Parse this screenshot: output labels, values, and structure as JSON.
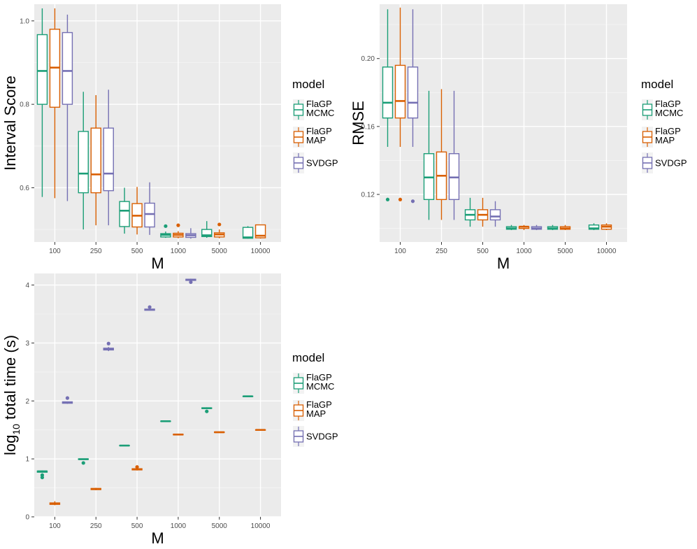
{
  "colors": {
    "panel": "#ebebeb",
    "grid_major": "#ffffff",
    "FlaGP MCMC": "#1b9e77",
    "FlaGP MAP": "#d95f02",
    "SVDGP": "#7570b3"
  },
  "legend": {
    "title": "model",
    "entries": [
      {
        "series": "FlaGP MCMC",
        "lines": [
          "FlaGP",
          "MCMC"
        ]
      },
      {
        "series": "FlaGP MAP",
        "lines": [
          "FlaGP",
          "MAP"
        ]
      },
      {
        "series": "SVDGP",
        "lines": [
          "SVDGP"
        ]
      }
    ]
  },
  "chart_data": [
    {
      "type": "boxplot",
      "xlabel": "M",
      "ylabel": "Interval Score",
      "categories": [
        "100",
        "250",
        "500",
        "1000",
        "5000",
        "10000"
      ],
      "ylim": [
        0.47,
        1.04
      ],
      "yticks": [
        0.6,
        0.8,
        1.0
      ],
      "ytick_labels": [
        "0.6",
        "0.8",
        "1.0"
      ],
      "grid": true,
      "legend_position": "right",
      "series": [
        {
          "name": "FlaGP MCMC",
          "boxes": [
            {
              "min": 0.578,
              "q1": 0.8,
              "median": 0.88,
              "q3": 0.967,
              "max": 1.03,
              "outliers": []
            },
            {
              "min": 0.5,
              "q1": 0.588,
              "median": 0.634,
              "q3": 0.735,
              "max": 0.83,
              "outliers": []
            },
            {
              "min": 0.49,
              "q1": 0.507,
              "median": 0.545,
              "q3": 0.567,
              "max": 0.6,
              "outliers": []
            },
            {
              "min": 0.48,
              "q1": 0.482,
              "median": 0.487,
              "q3": 0.49,
              "max": 0.495,
              "outliers": [
                0.508
              ]
            },
            {
              "min": 0.48,
              "q1": 0.483,
              "median": 0.486,
              "q3": 0.5,
              "max": 0.52,
              "outliers": []
            },
            {
              "min": 0.478,
              "q1": 0.479,
              "median": 0.481,
              "q3": 0.505,
              "max": 0.508,
              "outliers": []
            }
          ]
        },
        {
          "name": "FlaGP MAP",
          "boxes": [
            {
              "min": 0.575,
              "q1": 0.793,
              "median": 0.888,
              "q3": 0.98,
              "max": 1.03,
              "outliers": []
            },
            {
              "min": 0.51,
              "q1": 0.588,
              "median": 0.632,
              "q3": 0.743,
              "max": 0.822,
              "outliers": []
            },
            {
              "min": 0.488,
              "q1": 0.506,
              "median": 0.533,
              "q3": 0.562,
              "max": 0.602,
              "outliers": []
            },
            {
              "min": 0.479,
              "q1": 0.482,
              "median": 0.487,
              "q3": 0.491,
              "max": 0.496,
              "outliers": [
                0.51
              ]
            },
            {
              "min": 0.479,
              "q1": 0.482,
              "median": 0.488,
              "q3": 0.492,
              "max": 0.5,
              "outliers": [
                0.512
              ]
            },
            {
              "min": 0.478,
              "q1": 0.48,
              "median": 0.485,
              "q3": 0.511,
              "max": 0.512,
              "outliers": []
            }
          ]
        },
        {
          "name": "SVDGP",
          "boxes": [
            {
              "min": 0.568,
              "q1": 0.8,
              "median": 0.88,
              "q3": 0.972,
              "max": 1.015,
              "outliers": []
            },
            {
              "min": 0.51,
              "q1": 0.593,
              "median": 0.634,
              "q3": 0.743,
              "max": 0.835,
              "outliers": []
            },
            {
              "min": 0.487,
              "q1": 0.506,
              "median": 0.537,
              "q3": 0.563,
              "max": 0.613,
              "outliers": []
            },
            {
              "min": 0.478,
              "q1": 0.481,
              "median": 0.486,
              "q3": 0.49,
              "max": 0.503,
              "outliers": []
            }
          ]
        }
      ]
    },
    {
      "type": "boxplot",
      "xlabel": "M",
      "ylabel": "RMSE",
      "categories": [
        "100",
        "250",
        "500",
        "1000",
        "5000",
        "10000"
      ],
      "ylim": [
        0.092,
        0.232
      ],
      "yticks": [
        0.12,
        0.16,
        0.2
      ],
      "ytick_labels": [
        "0.12",
        "0.16",
        "0.20"
      ],
      "grid": true,
      "legend_position": "right",
      "series": [
        {
          "name": "FlaGP MCMC",
          "boxes": [
            {
              "min": 0.148,
              "q1": 0.165,
              "median": 0.174,
              "q3": 0.195,
              "max": 0.229,
              "outliers": [
                0.117
              ]
            },
            {
              "min": 0.105,
              "q1": 0.117,
              "median": 0.13,
              "q3": 0.144,
              "max": 0.181,
              "outliers": []
            },
            {
              "min": 0.101,
              "q1": 0.105,
              "median": 0.108,
              "q3": 0.111,
              "max": 0.118,
              "outliers": []
            },
            {
              "min": 0.099,
              "q1": 0.0995,
              "median": 0.1,
              "q3": 0.101,
              "max": 0.102,
              "outliers": []
            },
            {
              "min": 0.099,
              "q1": 0.0995,
              "median": 0.1,
              "q3": 0.101,
              "max": 0.102,
              "outliers": []
            },
            {
              "min": 0.099,
              "q1": 0.0995,
              "median": 0.1,
              "q3": 0.102,
              "max": 0.103,
              "outliers": []
            }
          ]
        },
        {
          "name": "FlaGP MAP",
          "boxes": [
            {
              "min": 0.148,
              "q1": 0.165,
              "median": 0.175,
              "q3": 0.196,
              "max": 0.23,
              "outliers": [
                0.117
              ]
            },
            {
              "min": 0.105,
              "q1": 0.117,
              "median": 0.131,
              "q3": 0.145,
              "max": 0.182,
              "outliers": []
            },
            {
              "min": 0.101,
              "q1": 0.105,
              "median": 0.108,
              "q3": 0.111,
              "max": 0.118,
              "outliers": []
            },
            {
              "min": 0.099,
              "q1": 0.1,
              "median": 0.101,
              "q3": 0.101,
              "max": 0.102,
              "outliers": []
            },
            {
              "min": 0.099,
              "q1": 0.0995,
              "median": 0.1,
              "q3": 0.101,
              "max": 0.102,
              "outliers": []
            },
            {
              "min": 0.099,
              "q1": 0.0995,
              "median": 0.101,
              "q3": 0.102,
              "max": 0.103,
              "outliers": []
            }
          ]
        },
        {
          "name": "SVDGP",
          "boxes": [
            {
              "min": 0.148,
              "q1": 0.165,
              "median": 0.174,
              "q3": 0.195,
              "max": 0.229,
              "outliers": [
                0.116
              ]
            },
            {
              "min": 0.105,
              "q1": 0.117,
              "median": 0.13,
              "q3": 0.144,
              "max": 0.181,
              "outliers": []
            },
            {
              "min": 0.101,
              "q1": 0.105,
              "median": 0.107,
              "q3": 0.111,
              "max": 0.116,
              "outliers": []
            },
            {
              "min": 0.099,
              "q1": 0.0995,
              "median": 0.1,
              "q3": 0.101,
              "max": 0.102,
              "outliers": []
            }
          ]
        }
      ]
    },
    {
      "type": "boxplot",
      "xlabel": "M",
      "ylabel": "log10 total time (s)",
      "ylabel_base": "log",
      "ylabel_sub": "10",
      "ylabel_rest": " total time (s)",
      "categories": [
        "100",
        "250",
        "500",
        "1000",
        "5000",
        "10000"
      ],
      "ylim": [
        0,
        4.2
      ],
      "yticks": [
        0,
        1,
        2,
        3,
        4
      ],
      "ytick_labels": [
        "0",
        "1",
        "2",
        "3",
        "4"
      ],
      "grid": true,
      "legend_position": "right",
      "series": [
        {
          "name": "FlaGP MCMC",
          "boxes": [
            {
              "min": 0.76,
              "q1": 0.77,
              "median": 0.785,
              "q3": 0.79,
              "max": 0.8,
              "outliers": [
                0.72,
                0.68
              ]
            },
            {
              "min": 0.985,
              "q1": 0.99,
              "median": 0.995,
              "q3": 1.0,
              "max": 1.005,
              "outliers": [
                0.93
              ]
            },
            {
              "min": 1.225,
              "q1": 1.228,
              "median": 1.23,
              "q3": 1.232,
              "max": 1.235,
              "outliers": []
            },
            {
              "min": 1.645,
              "q1": 1.648,
              "median": 1.65,
              "q3": 1.652,
              "max": 1.655,
              "outliers": []
            },
            {
              "min": 1.865,
              "q1": 1.87,
              "median": 1.875,
              "q3": 1.88,
              "max": 1.89,
              "outliers": [
                1.82
              ]
            },
            {
              "min": 2.075,
              "q1": 2.078,
              "median": 2.08,
              "q3": 2.082,
              "max": 2.085,
              "outliers": []
            }
          ]
        },
        {
          "name": "FlaGP MAP",
          "boxes": [
            {
              "min": 0.2,
              "q1": 0.215,
              "median": 0.23,
              "q3": 0.24,
              "max": 0.27,
              "outliers": []
            },
            {
              "min": 0.46,
              "q1": 0.47,
              "median": 0.48,
              "q3": 0.49,
              "max": 0.5,
              "outliers": []
            },
            {
              "min": 0.8,
              "q1": 0.81,
              "median": 0.82,
              "q3": 0.83,
              "max": 0.84,
              "outliers": [
                0.86
              ]
            },
            {
              "min": 1.41,
              "q1": 1.415,
              "median": 1.42,
              "q3": 1.425,
              "max": 1.43,
              "outliers": []
            },
            {
              "min": 1.45,
              "q1": 1.455,
              "median": 1.46,
              "q3": 1.465,
              "max": 1.47,
              "outliers": []
            },
            {
              "min": 1.495,
              "q1": 1.498,
              "median": 1.5,
              "q3": 1.502,
              "max": 1.505,
              "outliers": []
            }
          ]
        },
        {
          "name": "SVDGP",
          "boxes": [
            {
              "min": 1.95,
              "q1": 1.96,
              "median": 1.975,
              "q3": 1.985,
              "max": 1.99,
              "outliers": [
                2.05
              ]
            },
            {
              "min": 2.86,
              "q1": 2.88,
              "median": 2.895,
              "q3": 2.91,
              "max": 2.93,
              "outliers": [
                2.99
              ]
            },
            {
              "min": 3.56,
              "q1": 3.565,
              "median": 3.575,
              "q3": 3.585,
              "max": 3.59,
              "outliers": [
                3.62
              ]
            },
            {
              "min": 4.07,
              "q1": 4.08,
              "median": 4.09,
              "q3": 4.1,
              "max": 4.11,
              "outliers": [
                4.05
              ]
            }
          ]
        }
      ]
    }
  ]
}
